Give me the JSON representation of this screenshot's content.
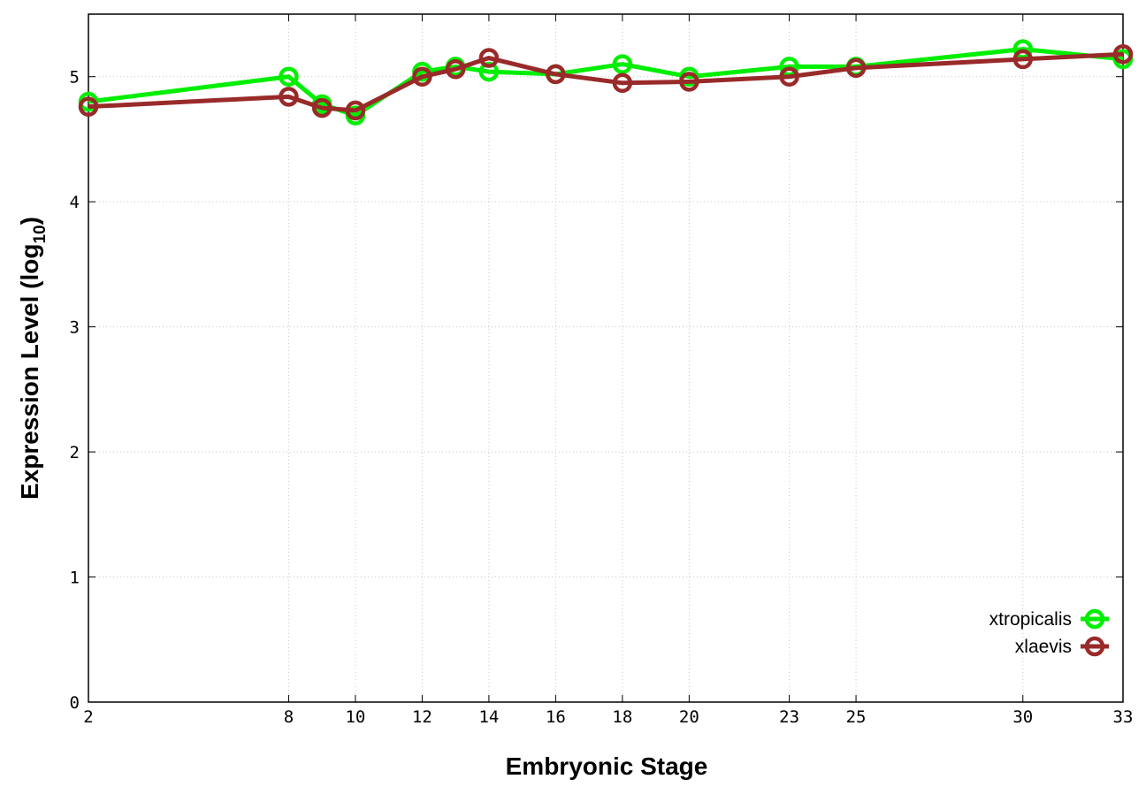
{
  "chart_data": {
    "type": "line",
    "xlabel": "Embryonic Stage",
    "ylabel_main": "Expression Level (log",
    "ylabel_sub": "10",
    "ylabel_close": ")",
    "x_tick_labels": [
      "2",
      "8",
      "10",
      "12",
      "14",
      "16",
      "18",
      "20",
      "23",
      "25",
      "30",
      "33"
    ],
    "x_tick_values": [
      2,
      8,
      10,
      12,
      14,
      16,
      18,
      20,
      23,
      25,
      30,
      33
    ],
    "y_tick_labels": [
      "0",
      "1",
      "2",
      "3",
      "4",
      "5"
    ],
    "y_tick_values": [
      0,
      1,
      2,
      3,
      4,
      5
    ],
    "xlim": [
      2,
      33
    ],
    "ylim": [
      0,
      5.5
    ],
    "grid": true,
    "legend_position": "bottom-right",
    "series": [
      {
        "name": "xtropicalis",
        "color": "#00ee00",
        "x": [
          2,
          8,
          9,
          10,
          12,
          13,
          14,
          16,
          18,
          20,
          23,
          25,
          30,
          33
        ],
        "values": [
          4.8,
          5.0,
          4.78,
          4.69,
          5.04,
          5.08,
          5.04,
          5.02,
          5.1,
          5.0,
          5.08,
          5.08,
          5.22,
          5.14
        ]
      },
      {
        "name": "xlaevis",
        "color": "#992a2a",
        "x": [
          2,
          8,
          9,
          10,
          12,
          13,
          14,
          16,
          18,
          20,
          23,
          25,
          30,
          33
        ],
        "values": [
          4.76,
          4.84,
          4.75,
          4.73,
          5.0,
          5.06,
          5.15,
          5.02,
          4.95,
          4.96,
          5.0,
          5.07,
          5.14,
          5.18
        ]
      }
    ]
  }
}
